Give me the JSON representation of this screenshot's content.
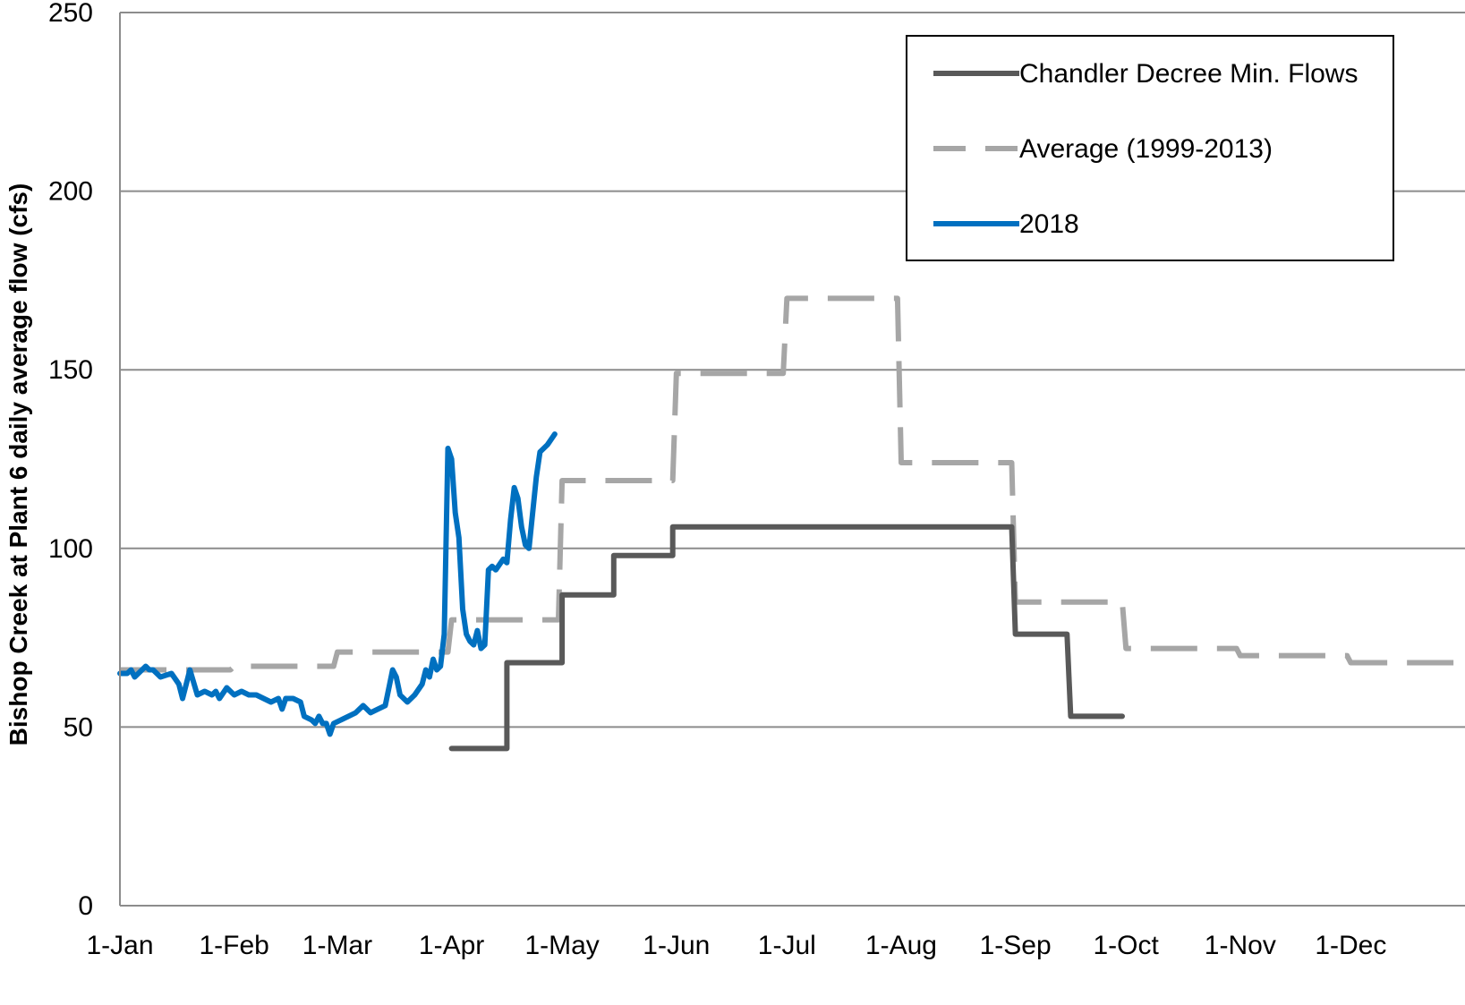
{
  "chart_data": {
    "type": "line",
    "title": "",
    "xlabel": "",
    "ylabel": "Bishop Creek at Plant 6 daily average flow (cfs)",
    "ylim": [
      0,
      250
    ],
    "yticks": [
      "0",
      "50",
      "100",
      "150",
      "200",
      "250"
    ],
    "x_domain_day_of_year": [
      1,
      366
    ],
    "xticks": [
      {
        "label": "1-Jan",
        "day": 1
      },
      {
        "label": "1-Feb",
        "day": 32
      },
      {
        "label": "1-Mar",
        "day": 60
      },
      {
        "label": "1-Apr",
        "day": 91
      },
      {
        "label": "1-May",
        "day": 121
      },
      {
        "label": "1-Jun",
        "day": 152
      },
      {
        "label": "1-Jul",
        "day": 182
      },
      {
        "label": "1-Aug",
        "day": 213
      },
      {
        "label": "1-Sep",
        "day": 244
      },
      {
        "label": "1-Oct",
        "day": 274
      },
      {
        "label": "1-Nov",
        "day": 305
      },
      {
        "label": "1-Dec",
        "day": 335
      }
    ],
    "grid": "horizontal",
    "legend_position": "top-right",
    "series": [
      {
        "name": "Chandler Decree Min. Flows",
        "color": "#595959",
        "style": "solid",
        "points": [
          {
            "x": "1-Apr",
            "y": 44
          },
          {
            "x": "16-Apr",
            "y": 44
          },
          {
            "x": "16-Apr",
            "y": 68
          },
          {
            "x": "1-May",
            "y": 68
          },
          {
            "x": "1-May",
            "y": 87
          },
          {
            "x": "15-May",
            "y": 87
          },
          {
            "x": "15-May",
            "y": 98
          },
          {
            "x": "31-May",
            "y": 98
          },
          {
            "x": "31-May",
            "y": 106
          },
          {
            "x": "31-Aug",
            "y": 106
          },
          {
            "x": "1-Sep",
            "y": 76
          },
          {
            "x": "15-Sep",
            "y": 76
          },
          {
            "x": "16-Sep",
            "y": 53
          },
          {
            "x": "30-Sep",
            "y": 53
          }
        ]
      },
      {
        "name": "Average (1999-2013)",
        "color": "#a6a6a6",
        "style": "dashed",
        "points": [
          {
            "x": "1-Jan",
            "y": 66
          },
          {
            "x": "31-Jan",
            "y": 66
          },
          {
            "x": "1-Feb",
            "y": 67
          },
          {
            "x": "28-Feb",
            "y": 67
          },
          {
            "x": "1-Mar",
            "y": 71
          },
          {
            "x": "31-Mar",
            "y": 71
          },
          {
            "x": "1-Apr",
            "y": 80
          },
          {
            "x": "30-Apr",
            "y": 80
          },
          {
            "x": "1-May",
            "y": 119
          },
          {
            "x": "31-May",
            "y": 119
          },
          {
            "x": "1-Jun",
            "y": 149
          },
          {
            "x": "30-Jun",
            "y": 149
          },
          {
            "x": "1-Jul",
            "y": 170
          },
          {
            "x": "31-Jul",
            "y": 170
          },
          {
            "x": "1-Aug",
            "y": 124
          },
          {
            "x": "31-Aug",
            "y": 124
          },
          {
            "x": "1-Sep",
            "y": 85
          },
          {
            "x": "30-Sep",
            "y": 85
          },
          {
            "x": "1-Oct",
            "y": 72
          },
          {
            "x": "31-Oct",
            "y": 72
          },
          {
            "x": "1-Nov",
            "y": 70
          },
          {
            "x": "30-Nov",
            "y": 70
          },
          {
            "x": "1-Dec",
            "y": 68
          },
          {
            "x": "31-Dec",
            "y": 68
          }
        ]
      },
      {
        "name": "2018",
        "color": "#0070c0",
        "style": "solid",
        "points": [
          {
            "x": "1-Jan",
            "y": 65
          },
          {
            "x": "3-Jan",
            "y": 65
          },
          {
            "x": "4-Jan",
            "y": 66
          },
          {
            "x": "5-Jan",
            "y": 64
          },
          {
            "x": "7-Jan",
            "y": 66
          },
          {
            "x": "8-Jan",
            "y": 67
          },
          {
            "x": "9-Jan",
            "y": 66
          },
          {
            "x": "10-Jan",
            "y": 66
          },
          {
            "x": "12-Jan",
            "y": 64
          },
          {
            "x": "15-Jan",
            "y": 65
          },
          {
            "x": "17-Jan",
            "y": 62
          },
          {
            "x": "18-Jan",
            "y": 58
          },
          {
            "x": "20-Jan",
            "y": 66
          },
          {
            "x": "22-Jan",
            "y": 59
          },
          {
            "x": "24-Jan",
            "y": 60
          },
          {
            "x": "26-Jan",
            "y": 59
          },
          {
            "x": "27-Jan",
            "y": 60
          },
          {
            "x": "28-Jan",
            "y": 58
          },
          {
            "x": "30-Jan",
            "y": 61
          },
          {
            "x": "1-Feb",
            "y": 59
          },
          {
            "x": "3-Feb",
            "y": 60
          },
          {
            "x": "5-Feb",
            "y": 59
          },
          {
            "x": "7-Feb",
            "y": 59
          },
          {
            "x": "9-Feb",
            "y": 58
          },
          {
            "x": "11-Feb",
            "y": 57
          },
          {
            "x": "13-Feb",
            "y": 58
          },
          {
            "x": "14-Feb",
            "y": 55
          },
          {
            "x": "15-Feb",
            "y": 58
          },
          {
            "x": "17-Feb",
            "y": 58
          },
          {
            "x": "19-Feb",
            "y": 57
          },
          {
            "x": "20-Feb",
            "y": 53
          },
          {
            "x": "22-Feb",
            "y": 52
          },
          {
            "x": "23-Feb",
            "y": 51
          },
          {
            "x": "24-Feb",
            "y": 53
          },
          {
            "x": "25-Feb",
            "y": 51
          },
          {
            "x": "26-Feb",
            "y": 51
          },
          {
            "x": "27-Feb",
            "y": 48
          },
          {
            "x": "28-Feb",
            "y": 51
          },
          {
            "x": "2-Mar",
            "y": 52
          },
          {
            "x": "4-Mar",
            "y": 53
          },
          {
            "x": "6-Mar",
            "y": 54
          },
          {
            "x": "8-Mar",
            "y": 56
          },
          {
            "x": "10-Mar",
            "y": 54
          },
          {
            "x": "12-Mar",
            "y": 55
          },
          {
            "x": "14-Mar",
            "y": 56
          },
          {
            "x": "16-Mar",
            "y": 66
          },
          {
            "x": "17-Mar",
            "y": 64
          },
          {
            "x": "18-Mar",
            "y": 59
          },
          {
            "x": "20-Mar",
            "y": 57
          },
          {
            "x": "22-Mar",
            "y": 59
          },
          {
            "x": "24-Mar",
            "y": 62
          },
          {
            "x": "25-Mar",
            "y": 66
          },
          {
            "x": "26-Mar",
            "y": 64
          },
          {
            "x": "27-Mar",
            "y": 69
          },
          {
            "x": "28-Mar",
            "y": 66
          },
          {
            "x": "29-Mar",
            "y": 67
          },
          {
            "x": "30-Mar",
            "y": 76
          },
          {
            "x": "31-Mar",
            "y": 128
          },
          {
            "x": "1-Apr",
            "y": 125
          },
          {
            "x": "2-Apr",
            "y": 110
          },
          {
            "x": "3-Apr",
            "y": 103
          },
          {
            "x": "4-Apr",
            "y": 83
          },
          {
            "x": "5-Apr",
            "y": 76
          },
          {
            "x": "6-Apr",
            "y": 74
          },
          {
            "x": "7-Apr",
            "y": 73
          },
          {
            "x": "8-Apr",
            "y": 77
          },
          {
            "x": "9-Apr",
            "y": 72
          },
          {
            "x": "10-Apr",
            "y": 73
          },
          {
            "x": "11-Apr",
            "y": 94
          },
          {
            "x": "12-Apr",
            "y": 95
          },
          {
            "x": "13-Apr",
            "y": 94
          },
          {
            "x": "15-Apr",
            "y": 97
          },
          {
            "x": "16-Apr",
            "y": 96
          },
          {
            "x": "17-Apr",
            "y": 108
          },
          {
            "x": "18-Apr",
            "y": 117
          },
          {
            "x": "19-Apr",
            "y": 114
          },
          {
            "x": "20-Apr",
            "y": 106
          },
          {
            "x": "21-Apr",
            "y": 101
          },
          {
            "x": "22-Apr",
            "y": 100
          },
          {
            "x": "23-Apr",
            "y": 110
          },
          {
            "x": "24-Apr",
            "y": 120
          },
          {
            "x": "25-Apr",
            "y": 127
          },
          {
            "x": "27-Apr",
            "y": 129
          },
          {
            "x": "29-Apr",
            "y": 132
          }
        ]
      }
    ]
  }
}
